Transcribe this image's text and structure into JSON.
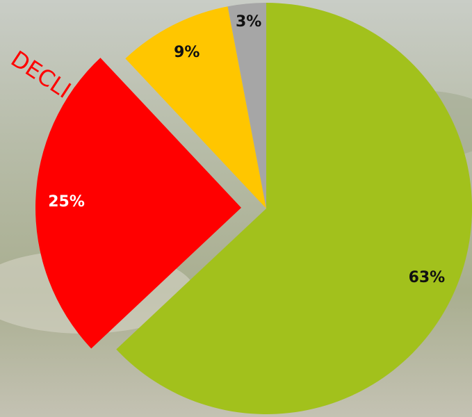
{
  "chart_data": {
    "type": "pie",
    "values": [
      63,
      25,
      9,
      3
    ],
    "value_labels": [
      "63%",
      "25%",
      "9%",
      "3%"
    ],
    "colors": [
      "#a2c11c",
      "#ff0000",
      "#ffc600",
      "#a6a6a6"
    ],
    "label_colors": [
      "#111111",
      "#ffffff",
      "#111111",
      "#111111"
    ],
    "exploded": [
      false,
      true,
      false,
      false
    ],
    "annotation": "DECLINE",
    "annotation_color": "#ff0000"
  }
}
